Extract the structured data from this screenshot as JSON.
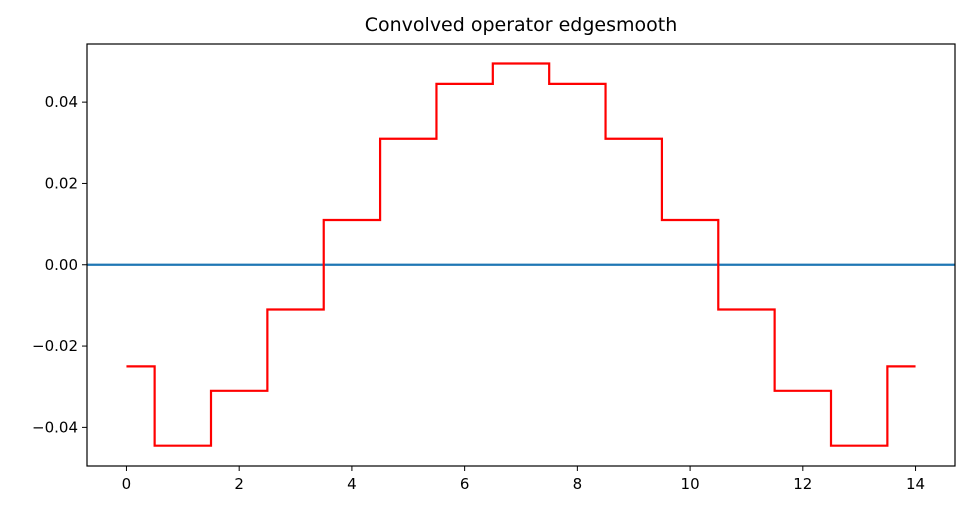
{
  "chart_data": {
    "type": "line",
    "title": "Convolved operator edgesmooth",
    "xlabel": "",
    "ylabel": "",
    "xlim": [
      -0.7,
      14.7
    ],
    "ylim": [
      -0.0495,
      0.0543
    ],
    "xticks": [
      0,
      2,
      4,
      6,
      8,
      10,
      12,
      14
    ],
    "yticks": [
      -0.04,
      -0.02,
      0.0,
      0.02,
      0.04
    ],
    "ytick_labels": [
      "−0.04",
      "−0.02",
      "0.00",
      "0.02",
      "0.04"
    ],
    "grid": false,
    "series": [
      {
        "style": "step-mid",
        "color": "#ff0000",
        "x": [
          0,
          1,
          2,
          3,
          4,
          5,
          6,
          7,
          8,
          9,
          10,
          11,
          12,
          13,
          14
        ],
        "y": [
          -0.025,
          -0.0445,
          -0.031,
          -0.011,
          0.011,
          0.031,
          0.0445,
          0.0495,
          0.0445,
          0.031,
          0.011,
          -0.011,
          -0.031,
          -0.0445,
          -0.025
        ]
      }
    ],
    "hlines": [
      {
        "y": 0.0,
        "color": "#1f77b4"
      }
    ]
  }
}
